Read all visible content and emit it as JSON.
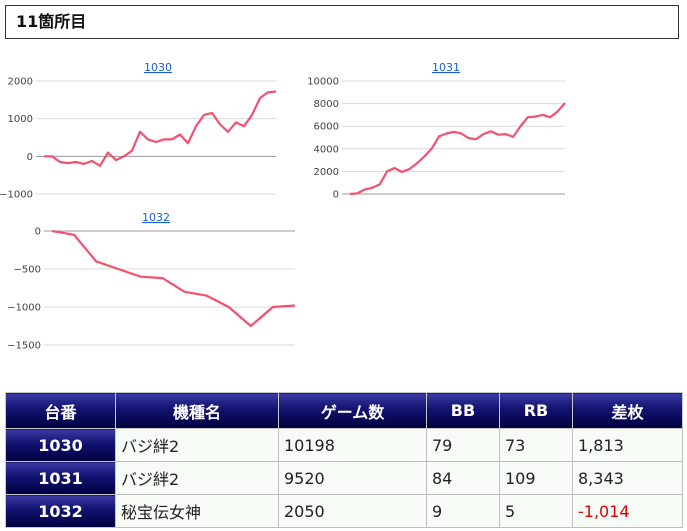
{
  "section": {
    "title": "11箇所目"
  },
  "colors": {
    "line": "#f5506e",
    "grid": "#d9d9d9",
    "header_bg": "#0a0a5e",
    "negative": "#e00000"
  },
  "chart_data": [
    {
      "type": "line",
      "title": "1030",
      "ylim": [
        -1000,
        2000
      ],
      "yticks": [
        -1000,
        0,
        1000,
        2000
      ],
      "ytick_labels": [
        "−1000",
        "0",
        "1000",
        "2000"
      ],
      "values": [
        0,
        0,
        -150,
        -180,
        -150,
        -200,
        -120,
        -250,
        100,
        -100,
        0,
        150,
        650,
        450,
        380,
        450,
        450,
        580,
        350,
        800,
        1100,
        1150,
        850,
        650,
        900,
        800,
        1100,
        1550,
        1700,
        1720
      ]
    },
    {
      "type": "line",
      "title": "1031",
      "ylim": [
        0,
        10000
      ],
      "yticks": [
        0,
        2000,
        4000,
        6000,
        8000,
        10000
      ],
      "ytick_labels": [
        "0",
        "2000",
        "4000",
        "6000",
        "8000",
        "10000"
      ],
      "values": [
        0,
        50,
        400,
        550,
        850,
        2000,
        2300,
        1950,
        2200,
        2700,
        3300,
        4000,
        5100,
        5350,
        5500,
        5350,
        4950,
        4850,
        5300,
        5550,
        5250,
        5300,
        5050,
        6000,
        6800,
        6850,
        7000,
        6800,
        7300,
        8050
      ]
    },
    {
      "type": "line",
      "title": "1032",
      "ylim": [
        -1500,
        0
      ],
      "yticks": [
        -1500,
        -1000,
        -500,
        0
      ],
      "ytick_labels": [
        "−1500",
        "−1000",
        "−500",
        "0"
      ],
      "values": [
        0,
        -50,
        -400,
        -500,
        -600,
        -620,
        -800,
        -850,
        -1000,
        -1250,
        -1000,
        -980
      ]
    }
  ],
  "table": {
    "headers": [
      "台番",
      "機種名",
      "ゲーム数",
      "BB",
      "RB",
      "差枚"
    ],
    "rows": [
      {
        "id": "1030",
        "model": "バジ絆2",
        "games": "10198",
        "bb": "79",
        "rb": "73",
        "diff": "1,813",
        "negative": false
      },
      {
        "id": "1031",
        "model": "バジ絆2",
        "games": "9520",
        "bb": "84",
        "rb": "109",
        "diff": "8,343",
        "negative": false
      },
      {
        "id": "1032",
        "model": "秘宝伝女神",
        "games": "2050",
        "bb": "9",
        "rb": "5",
        "diff": "-1,014",
        "negative": true
      }
    ]
  }
}
